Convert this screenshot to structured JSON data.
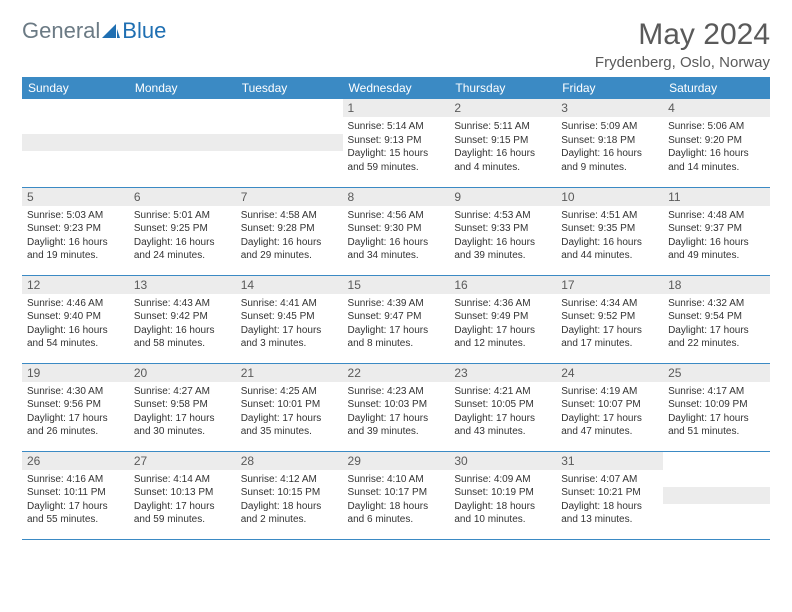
{
  "logo": {
    "text1": "General",
    "text2": "Blue"
  },
  "title": "May 2024",
  "location": "Frydenberg, Oslo, Norway",
  "colors": {
    "header_bg": "#3b8ac4",
    "header_text": "#ffffff",
    "daynum_bg": "#ececec",
    "body_text": "#333333",
    "title_text": "#5a5a5a",
    "border": "#3b8ac4"
  },
  "days_of_week": [
    "Sunday",
    "Monday",
    "Tuesday",
    "Wednesday",
    "Thursday",
    "Friday",
    "Saturday"
  ],
  "grid": [
    [
      null,
      null,
      null,
      {
        "n": "1",
        "sr": "5:14 AM",
        "ss": "9:13 PM",
        "dl": "15 hours and 59 minutes."
      },
      {
        "n": "2",
        "sr": "5:11 AM",
        "ss": "9:15 PM",
        "dl": "16 hours and 4 minutes."
      },
      {
        "n": "3",
        "sr": "5:09 AM",
        "ss": "9:18 PM",
        "dl": "16 hours and 9 minutes."
      },
      {
        "n": "4",
        "sr": "5:06 AM",
        "ss": "9:20 PM",
        "dl": "16 hours and 14 minutes."
      }
    ],
    [
      {
        "n": "5",
        "sr": "5:03 AM",
        "ss": "9:23 PM",
        "dl": "16 hours and 19 minutes."
      },
      {
        "n": "6",
        "sr": "5:01 AM",
        "ss": "9:25 PM",
        "dl": "16 hours and 24 minutes."
      },
      {
        "n": "7",
        "sr": "4:58 AM",
        "ss": "9:28 PM",
        "dl": "16 hours and 29 minutes."
      },
      {
        "n": "8",
        "sr": "4:56 AM",
        "ss": "9:30 PM",
        "dl": "16 hours and 34 minutes."
      },
      {
        "n": "9",
        "sr": "4:53 AM",
        "ss": "9:33 PM",
        "dl": "16 hours and 39 minutes."
      },
      {
        "n": "10",
        "sr": "4:51 AM",
        "ss": "9:35 PM",
        "dl": "16 hours and 44 minutes."
      },
      {
        "n": "11",
        "sr": "4:48 AM",
        "ss": "9:37 PM",
        "dl": "16 hours and 49 minutes."
      }
    ],
    [
      {
        "n": "12",
        "sr": "4:46 AM",
        "ss": "9:40 PM",
        "dl": "16 hours and 54 minutes."
      },
      {
        "n": "13",
        "sr": "4:43 AM",
        "ss": "9:42 PM",
        "dl": "16 hours and 58 minutes."
      },
      {
        "n": "14",
        "sr": "4:41 AM",
        "ss": "9:45 PM",
        "dl": "17 hours and 3 minutes."
      },
      {
        "n": "15",
        "sr": "4:39 AM",
        "ss": "9:47 PM",
        "dl": "17 hours and 8 minutes."
      },
      {
        "n": "16",
        "sr": "4:36 AM",
        "ss": "9:49 PM",
        "dl": "17 hours and 12 minutes."
      },
      {
        "n": "17",
        "sr": "4:34 AM",
        "ss": "9:52 PM",
        "dl": "17 hours and 17 minutes."
      },
      {
        "n": "18",
        "sr": "4:32 AM",
        "ss": "9:54 PM",
        "dl": "17 hours and 22 minutes."
      }
    ],
    [
      {
        "n": "19",
        "sr": "4:30 AM",
        "ss": "9:56 PM",
        "dl": "17 hours and 26 minutes."
      },
      {
        "n": "20",
        "sr": "4:27 AM",
        "ss": "9:58 PM",
        "dl": "17 hours and 30 minutes."
      },
      {
        "n": "21",
        "sr": "4:25 AM",
        "ss": "10:01 PM",
        "dl": "17 hours and 35 minutes."
      },
      {
        "n": "22",
        "sr": "4:23 AM",
        "ss": "10:03 PM",
        "dl": "17 hours and 39 minutes."
      },
      {
        "n": "23",
        "sr": "4:21 AM",
        "ss": "10:05 PM",
        "dl": "17 hours and 43 minutes."
      },
      {
        "n": "24",
        "sr": "4:19 AM",
        "ss": "10:07 PM",
        "dl": "17 hours and 47 minutes."
      },
      {
        "n": "25",
        "sr": "4:17 AM",
        "ss": "10:09 PM",
        "dl": "17 hours and 51 minutes."
      }
    ],
    [
      {
        "n": "26",
        "sr": "4:16 AM",
        "ss": "10:11 PM",
        "dl": "17 hours and 55 minutes."
      },
      {
        "n": "27",
        "sr": "4:14 AM",
        "ss": "10:13 PM",
        "dl": "17 hours and 59 minutes."
      },
      {
        "n": "28",
        "sr": "4:12 AM",
        "ss": "10:15 PM",
        "dl": "18 hours and 2 minutes."
      },
      {
        "n": "29",
        "sr": "4:10 AM",
        "ss": "10:17 PM",
        "dl": "18 hours and 6 minutes."
      },
      {
        "n": "30",
        "sr": "4:09 AM",
        "ss": "10:19 PM",
        "dl": "18 hours and 10 minutes."
      },
      {
        "n": "31",
        "sr": "4:07 AM",
        "ss": "10:21 PM",
        "dl": "18 hours and 13 minutes."
      },
      null
    ]
  ],
  "labels": {
    "sunrise": "Sunrise:",
    "sunset": "Sunset:",
    "daylight": "Daylight:"
  }
}
